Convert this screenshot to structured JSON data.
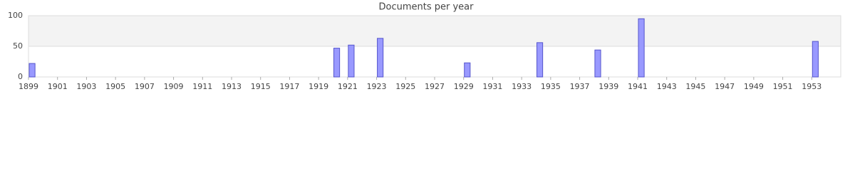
{
  "chart_data": {
    "type": "bar",
    "title": "Documents per year",
    "x": [
      1899,
      1920,
      1921,
      1923,
      1929,
      1934,
      1938,
      1941,
      1953
    ],
    "values": [
      22,
      47,
      52,
      63,
      23,
      56,
      44,
      95,
      58
    ],
    "color": "#9999ff",
    "edge_color": "#5555cc",
    "xlim": [
      1899,
      1955
    ],
    "xticks": [
      1899,
      1901,
      1903,
      1905,
      1907,
      1909,
      1911,
      1913,
      1915,
      1917,
      1919,
      1921,
      1923,
      1925,
      1927,
      1929,
      1931,
      1933,
      1935,
      1937,
      1939,
      1941,
      1943,
      1945,
      1947,
      1949,
      1951,
      1953
    ],
    "ylim": [
      0,
      100
    ],
    "yticks": [
      0,
      50,
      100
    ],
    "grid": true
  }
}
